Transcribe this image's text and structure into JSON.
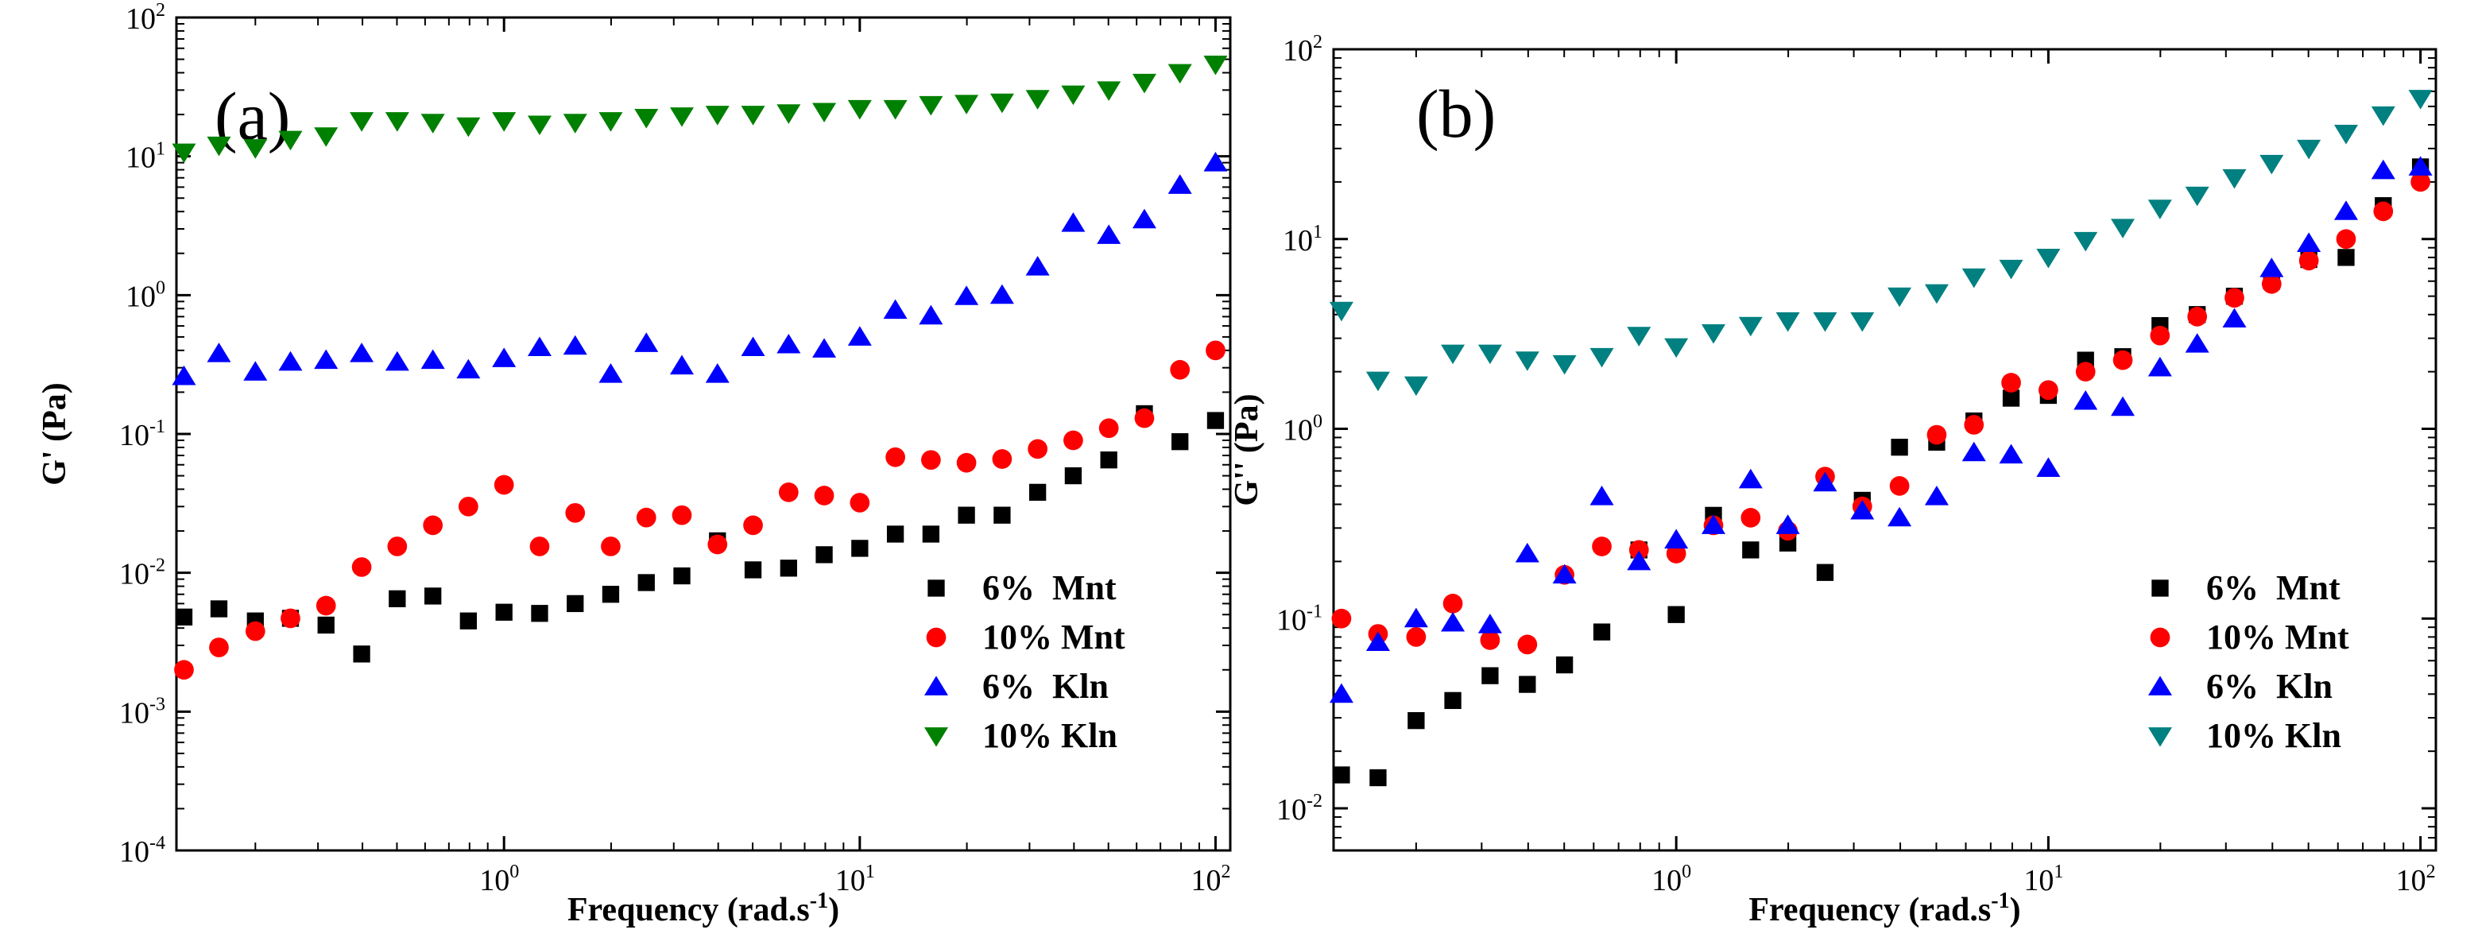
{
  "chart_data": [
    {
      "panel": "a",
      "type": "scatter",
      "title": "(a)",
      "xlabel": "Frequency (rad.s",
      "xlabel_sup": "-1",
      "xlabel_close": ")",
      "ylabel": "G' (Pa)",
      "xscale": "log",
      "yscale": "log",
      "xlim": [
        0.12,
        110
      ],
      "ylim": [
        0.0001,
        100
      ],
      "xticks": [
        {
          "base": "10",
          "exp": "0",
          "value": 1
        },
        {
          "base": "10",
          "exp": "1",
          "value": 10
        },
        {
          "base": "10",
          "exp": "2",
          "value": 100
        }
      ],
      "yticks": [
        {
          "base": "10",
          "exp": "-4",
          "value": 0.0001
        },
        {
          "base": "10",
          "exp": "-3",
          "value": 0.001
        },
        {
          "base": "10",
          "exp": "-2",
          "value": 0.01
        },
        {
          "base": "10",
          "exp": "-1",
          "value": 0.1
        },
        {
          "base": "10",
          "exp": "0",
          "value": 1
        },
        {
          "base": "10",
          "exp": "1",
          "value": 10
        },
        {
          "base": "10",
          "exp": "2",
          "value": 100
        }
      ],
      "legend_position": "bottom-right",
      "x": [
        0.126,
        0.158,
        0.2,
        0.251,
        0.316,
        0.398,
        0.501,
        0.631,
        0.794,
        1.0,
        1.259,
        1.585,
        1.995,
        2.512,
        3.162,
        3.981,
        5.012,
        6.31,
        7.943,
        10.0,
        12.59,
        15.85,
        19.95,
        25.12,
        31.62,
        39.81,
        50.12,
        63.1,
        79.43,
        100.0
      ],
      "series": [
        {
          "name": "6%  Mnt",
          "marker": "square",
          "color": "#000000",
          "values": [
            0.0048,
            0.0055,
            0.0045,
            0.0047,
            0.0042,
            0.0026,
            0.0065,
            0.0068,
            0.0045,
            0.0052,
            0.0051,
            0.006,
            0.007,
            0.0085,
            0.0095,
            0.017,
            0.0105,
            0.0108,
            0.0135,
            0.015,
            0.019,
            0.019,
            0.026,
            0.026,
            0.038,
            0.05,
            0.065,
            0.14,
            0.088,
            0.125
          ]
        },
        {
          "name": "10% Mnt",
          "marker": "circle",
          "color": "#ff0000",
          "values": [
            0.002,
            0.0029,
            0.0038,
            0.0047,
            0.0058,
            0.011,
            0.0155,
            0.022,
            0.03,
            0.043,
            0.0155,
            0.027,
            0.0155,
            0.025,
            0.026,
            0.016,
            0.022,
            0.038,
            0.036,
            0.032,
            0.068,
            0.065,
            0.062,
            0.066,
            0.078,
            0.09,
            0.11,
            0.13,
            0.29,
            0.4
          ]
        },
        {
          "name": "6%  Kln",
          "marker": "triangle-up",
          "color": "#0000ff",
          "values": [
            0.26,
            0.38,
            0.28,
            0.33,
            0.34,
            0.38,
            0.33,
            0.34,
            0.29,
            0.35,
            0.42,
            0.43,
            0.27,
            0.45,
            0.31,
            0.27,
            0.42,
            0.44,
            0.41,
            0.5,
            0.78,
            0.71,
            0.98,
            1.0,
            1.6,
            3.3,
            2.7,
            3.5,
            6.2,
            9.0
          ]
        },
        {
          "name": "10% Kln",
          "marker": "triangle-down",
          "color": "#008000",
          "values": [
            10.7,
            12.0,
            11.5,
            13.2,
            14.0,
            18.0,
            18.0,
            17.5,
            16.5,
            18.0,
            17.0,
            17.5,
            18.0,
            19.0,
            19.5,
            20.0,
            20.0,
            20.5,
            21.0,
            22.0,
            22.0,
            23.5,
            24.0,
            24.5,
            26.0,
            28.0,
            30.0,
            34.0,
            40.0,
            46.0
          ]
        }
      ]
    },
    {
      "panel": "b",
      "type": "scatter",
      "title": "(b)",
      "xlabel": "Frequency (rad.s",
      "xlabel_sup": "-1",
      "xlabel_close": ")",
      "ylabel": "G'' (Pa)",
      "xscale": "log",
      "yscale": "log",
      "xlim": [
        0.12,
        110
      ],
      "ylim": [
        0.006,
        100
      ],
      "xticks": [
        {
          "base": "10",
          "exp": "0",
          "value": 1
        },
        {
          "base": "10",
          "exp": "1",
          "value": 10
        },
        {
          "base": "10",
          "exp": "2",
          "value": 100
        }
      ],
      "yticks": [
        {
          "base": "10",
          "exp": "-2",
          "value": 0.01
        },
        {
          "base": "10",
          "exp": "-1",
          "value": 0.1
        },
        {
          "base": "10",
          "exp": "0",
          "value": 1
        },
        {
          "base": "10",
          "exp": "1",
          "value": 10
        },
        {
          "base": "10",
          "exp": "2",
          "value": 100
        }
      ],
      "legend_position": "bottom-right",
      "x": [
        0.126,
        0.158,
        0.2,
        0.251,
        0.316,
        0.398,
        0.501,
        0.631,
        0.794,
        1.0,
        1.259,
        1.585,
        1.995,
        2.512,
        3.162,
        3.981,
        5.012,
        6.31,
        7.943,
        10.0,
        12.59,
        15.85,
        19.95,
        25.12,
        31.62,
        39.81,
        50.12,
        63.1,
        79.43,
        100.0
      ],
      "series": [
        {
          "name": "6%  Mnt",
          "marker": "square",
          "color": "#000000",
          "values": [
            0.015,
            0.0145,
            0.029,
            0.037,
            0.05,
            0.045,
            0.057,
            0.085,
            0.23,
            0.105,
            0.35,
            0.23,
            0.25,
            0.175,
            0.42,
            0.8,
            0.85,
            1.1,
            1.45,
            1.5,
            2.3,
            2.4,
            3.5,
            4.0,
            5.0,
            6.0,
            7.8,
            8.0,
            15.0,
            24.0
          ]
        },
        {
          "name": "10% Mnt",
          "marker": "circle",
          "color": "#ff0000",
          "values": [
            0.1,
            0.083,
            0.08,
            0.12,
            0.077,
            0.073,
            0.17,
            0.24,
            0.23,
            0.22,
            0.31,
            0.34,
            0.29,
            0.56,
            0.39,
            0.5,
            0.93,
            1.05,
            1.75,
            1.6,
            2.0,
            2.3,
            3.1,
            3.9,
            4.9,
            5.8,
            7.7,
            10.0,
            14.0,
            20.0
          ]
        },
        {
          "name": "6%  Kln",
          "marker": "triangle-up",
          "color": "#0000ff",
          "values": [
            0.04,
            0.075,
            0.1,
            0.095,
            0.093,
            0.22,
            0.17,
            0.44,
            0.2,
            0.26,
            0.31,
            0.54,
            0.31,
            0.52,
            0.37,
            0.34,
            0.44,
            0.75,
            0.73,
            0.62,
            1.4,
            1.3,
            2.1,
            2.8,
            3.8,
            7.0,
            9.5,
            14.0,
            23.0,
            24.0
          ]
        },
        {
          "name": "10% Kln",
          "marker": "triangle-down",
          "color": "#008080",
          "values": [
            4.2,
            1.8,
            1.7,
            2.5,
            2.5,
            2.3,
            2.2,
            2.4,
            3.1,
            2.7,
            3.2,
            3.5,
            3.7,
            3.7,
            3.7,
            5.0,
            5.2,
            6.3,
            7.0,
            8.0,
            9.8,
            11.5,
            14.5,
            17.0,
            21.0,
            25.0,
            30.0,
            36.0,
            45.0,
            55.0
          ]
        }
      ]
    }
  ]
}
